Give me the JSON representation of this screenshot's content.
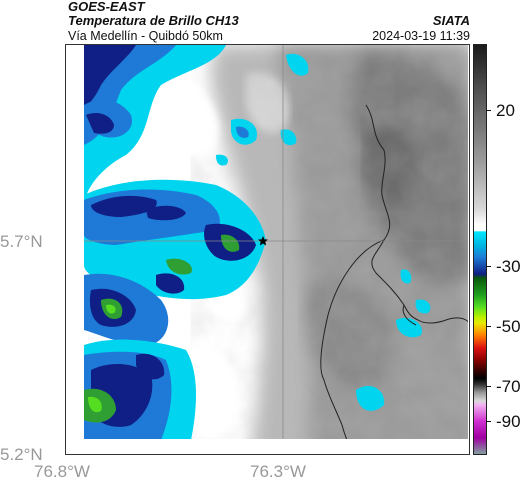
{
  "header": {
    "satellite": "GOES-EAST",
    "product": "Temperatura de Brillo CH13",
    "region": "Vía Medellín - Quibdó 50km",
    "agency": "SIATA",
    "datetime": "2024-03-19 11:39"
  },
  "axes": {
    "lat_labels": [
      "5.7°N",
      "5.2°N"
    ],
    "lon_labels": [
      "76.8°W",
      "76.3°W"
    ]
  },
  "colorbar": {
    "tick_labels": [
      "20",
      "-30",
      "-50",
      "-70",
      "-90"
    ],
    "colors": {
      "white": "#ffffff",
      "cyan": "#00d4ee",
      "blue": "#1e7ad6",
      "navy": "#0f1f85",
      "green": "#2f9f34",
      "bright_green": "#55dd22",
      "yellow": "#eaea00",
      "orange": "#ff7f00",
      "red": "#dd1111",
      "dark_red": "#500000",
      "magenta": "#d030d0"
    }
  },
  "map": {
    "marker": "star",
    "marker_name": "star-marker"
  }
}
